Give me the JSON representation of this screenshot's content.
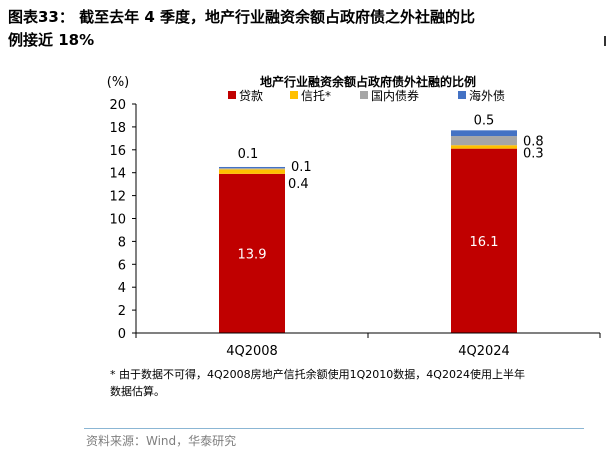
{
  "figure": {
    "title_line1": "图表33：  截至去年 4 季度，地产行业融资余额占政府债之外社融的比",
    "title_line2": "例接近 18%",
    "notes_line1": "* 由于数据不可得，4Q2008房地产信托余额使用1Q2010数据，4Q2024使用上半年",
    "notes_line2": "数据估算。",
    "source": "资料来源：Wind，华泰研究"
  },
  "chart_data": {
    "type": "bar",
    "stacked": true,
    "title": "地产行业融资余额占政府债外社融的比例",
    "ylabel": "(%)",
    "ylim": [
      0,
      20
    ],
    "yticks": [
      0,
      2,
      4,
      6,
      8,
      10,
      12,
      14,
      16,
      18,
      20
    ],
    "categories": [
      "4Q2008",
      "4Q2024"
    ],
    "legend_position": "top",
    "grid": false,
    "series": [
      {
        "name": "贷款",
        "color": "#c00000",
        "values": [
          13.9,
          16.1
        ],
        "labels": [
          "13.9",
          "16.1"
        ]
      },
      {
        "name": "信托*",
        "color": "#ffc000",
        "values": [
          0.4,
          0.3
        ],
        "labels": [
          "0.4",
          "0.3"
        ]
      },
      {
        "name": "国内债券",
        "color": "#a6a6a6",
        "values": [
          0.1,
          0.8
        ],
        "labels": [
          "0.1",
          "0.8"
        ]
      },
      {
        "name": "海外债",
        "color": "#4472c4",
        "values": [
          0.1,
          0.5
        ],
        "labels": [
          "0.1",
          "0.5"
        ]
      }
    ]
  }
}
